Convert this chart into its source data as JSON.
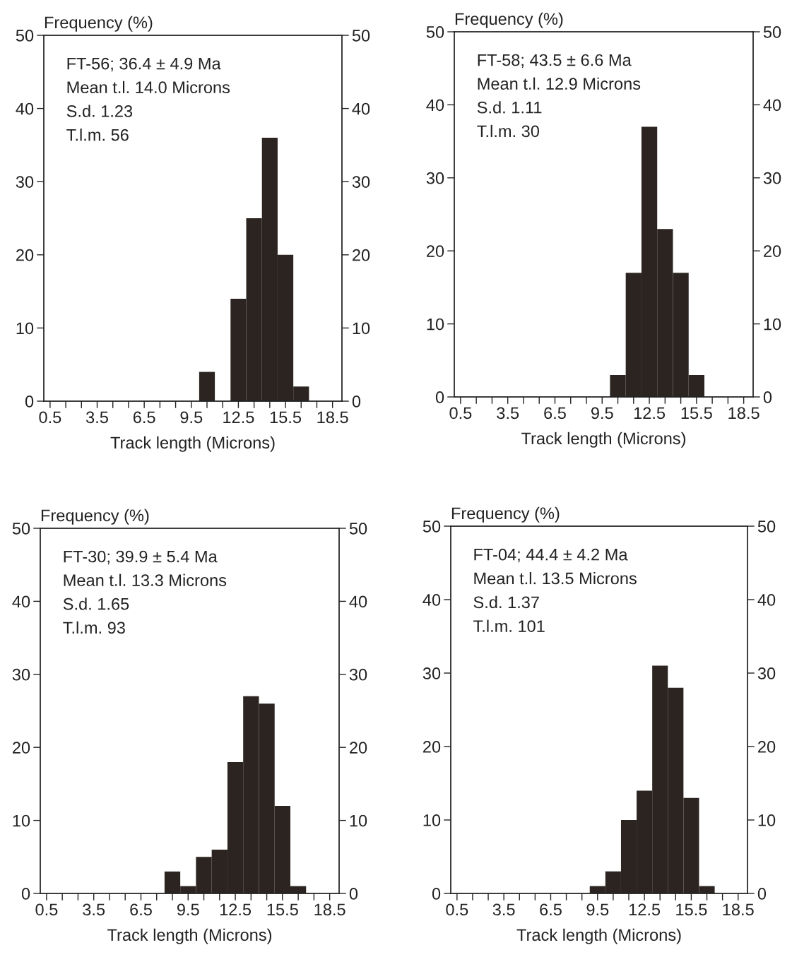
{
  "chart_data": [
    {
      "type": "histogram",
      "ylabel": "Frequency (%)",
      "xlabel": "Track length (Microns)",
      "annotations": [
        "FT-56; 36.4 ± 4.9 Ma",
        "Mean t.l. 14.0 Microns",
        "S.d. 1.23",
        "T.l.m. 56"
      ],
      "bins": [
        10,
        11,
        12,
        13,
        14,
        15,
        16,
        17
      ],
      "values": [
        4,
        0,
        14,
        25,
        36,
        20,
        2
      ],
      "color": "#2b2420",
      "xlim": [
        0.1,
        19.1
      ],
      "xticks": [
        0.5,
        {
          "value": 1.5,
          "label": null
        },
        {
          "value": 2.5,
          "label": null
        },
        3.5,
        {
          "value": 4.5,
          "label": null
        },
        {
          "value": 5.5,
          "label": null
        },
        6.5,
        {
          "value": 7.5,
          "label": null
        },
        {
          "value": 8.5,
          "label": null
        },
        9.5,
        {
          "value": 10.5,
          "label": null
        },
        {
          "value": 11.5,
          "label": null
        },
        12.5,
        {
          "value": 13.5,
          "label": null
        },
        {
          "value": 14.5,
          "label": null
        },
        15.5,
        {
          "value": 16.5,
          "label": null
        },
        {
          "value": 17.5,
          "label": null
        },
        18.5
      ],
      "ylim": [
        0,
        50
      ],
      "yticks": [
        0,
        10,
        20,
        30,
        40,
        50
      ],
      "y2lim": [
        0,
        50
      ],
      "y2ticks": [
        0,
        10,
        20,
        30,
        40,
        50
      ],
      "grid": false
    },
    {
      "type": "histogram",
      "ylabel": "Frequency (%)",
      "xlabel": "Track length (Microns)",
      "annotations": [
        "FT-58; 43.5 ± 6.6 Ma",
        "Mean t.l. 12.9 Microns",
        "S.d. 1.11",
        "T.l.m. 30"
      ],
      "bins": [
        10,
        11,
        12,
        13,
        14,
        15,
        16
      ],
      "values": [
        3,
        17,
        37,
        23,
        17,
        3
      ],
      "color": "#2b2420",
      "xlim": [
        0.1,
        19.1
      ],
      "xticks": [
        0.5,
        {
          "value": 1.5,
          "label": null
        },
        {
          "value": 2.5,
          "label": null
        },
        3.5,
        {
          "value": 4.5,
          "label": null
        },
        {
          "value": 5.5,
          "label": null
        },
        6.5,
        {
          "value": 7.5,
          "label": null
        },
        {
          "value": 8.5,
          "label": null
        },
        9.5,
        {
          "value": 10.5,
          "label": null
        },
        {
          "value": 11.5,
          "label": null
        },
        12.5,
        {
          "value": 13.5,
          "label": null
        },
        {
          "value": 14.5,
          "label": null
        },
        15.5,
        {
          "value": 16.5,
          "label": null
        },
        {
          "value": 17.5,
          "label": null
        },
        18.5
      ],
      "ylim": [
        0,
        50
      ],
      "yticks": [
        0,
        10,
        20,
        30,
        40,
        50
      ],
      "y2lim": [
        0,
        50
      ],
      "y2ticks": [
        0,
        10,
        20,
        30,
        40,
        50
      ],
      "grid": false
    },
    {
      "type": "histogram",
      "ylabel": "Frequency (%)",
      "xlabel": "Track length (Microns)",
      "annotations": [
        "FT-30; 39.9 ± 5.4 Ma",
        "Mean t.l. 13.3 Microns",
        "S.d. 1.65",
        "T.l.m. 93"
      ],
      "bins": [
        8,
        9,
        10,
        11,
        12,
        13,
        14,
        15,
        16,
        17
      ],
      "values": [
        3,
        1,
        5,
        6,
        18,
        27,
        26,
        12,
        1
      ],
      "color": "#2b2420",
      "xlim": [
        0.1,
        19.1
      ],
      "xticks": [
        0.5,
        {
          "value": 1.5,
          "label": null
        },
        {
          "value": 2.5,
          "label": null
        },
        3.5,
        {
          "value": 4.5,
          "label": null
        },
        {
          "value": 5.5,
          "label": null
        },
        6.5,
        {
          "value": 7.5,
          "label": null
        },
        {
          "value": 8.5,
          "label": null
        },
        9.5,
        {
          "value": 10.5,
          "label": null
        },
        {
          "value": 11.5,
          "label": null
        },
        12.5,
        {
          "value": 13.5,
          "label": null
        },
        {
          "value": 14.5,
          "label": null
        },
        15.5,
        {
          "value": 16.5,
          "label": null
        },
        {
          "value": 17.5,
          "label": null
        },
        18.5
      ],
      "ylim": [
        0,
        50
      ],
      "yticks": [
        0,
        10,
        20,
        30,
        40,
        50
      ],
      "y2lim": [
        0,
        50
      ],
      "y2ticks": [
        0,
        10,
        20,
        30,
        40,
        50
      ],
      "grid": false
    },
    {
      "type": "histogram",
      "ylabel": "Frequency (%)",
      "xlabel": "Track length (Microns)",
      "annotations": [
        "FT-04; 44.4 ± 4.2 Ma",
        "Mean t.l. 13.5 Microns",
        "S.d. 1.37",
        "T.l.m. 101"
      ],
      "bins": [
        9,
        10,
        11,
        12,
        13,
        14,
        15,
        16,
        17
      ],
      "values": [
        1,
        3,
        10,
        14,
        31,
        28,
        13,
        1
      ],
      "color": "#2b2420",
      "xlim": [
        0.1,
        19.1
      ],
      "xticks": [
        0.5,
        {
          "value": 1.5,
          "label": null
        },
        {
          "value": 2.5,
          "label": null
        },
        3.5,
        {
          "value": 4.5,
          "label": null
        },
        {
          "value": 5.5,
          "label": null
        },
        6.5,
        {
          "value": 7.5,
          "label": null
        },
        {
          "value": 8.5,
          "label": null
        },
        9.5,
        {
          "value": 10.5,
          "label": null
        },
        {
          "value": 11.5,
          "label": null
        },
        12.5,
        {
          "value": 13.5,
          "label": null
        },
        {
          "value": 14.5,
          "label": null
        },
        15.5,
        {
          "value": 16.5,
          "label": null
        },
        {
          "value": 17.5,
          "label": null
        },
        18.5
      ],
      "ylim": [
        0,
        50
      ],
      "yticks": [
        0,
        10,
        20,
        30,
        40,
        50
      ],
      "y2lim": [
        0,
        50
      ],
      "y2ticks": [
        0,
        10,
        20,
        30,
        40,
        50
      ],
      "grid": false
    }
  ]
}
